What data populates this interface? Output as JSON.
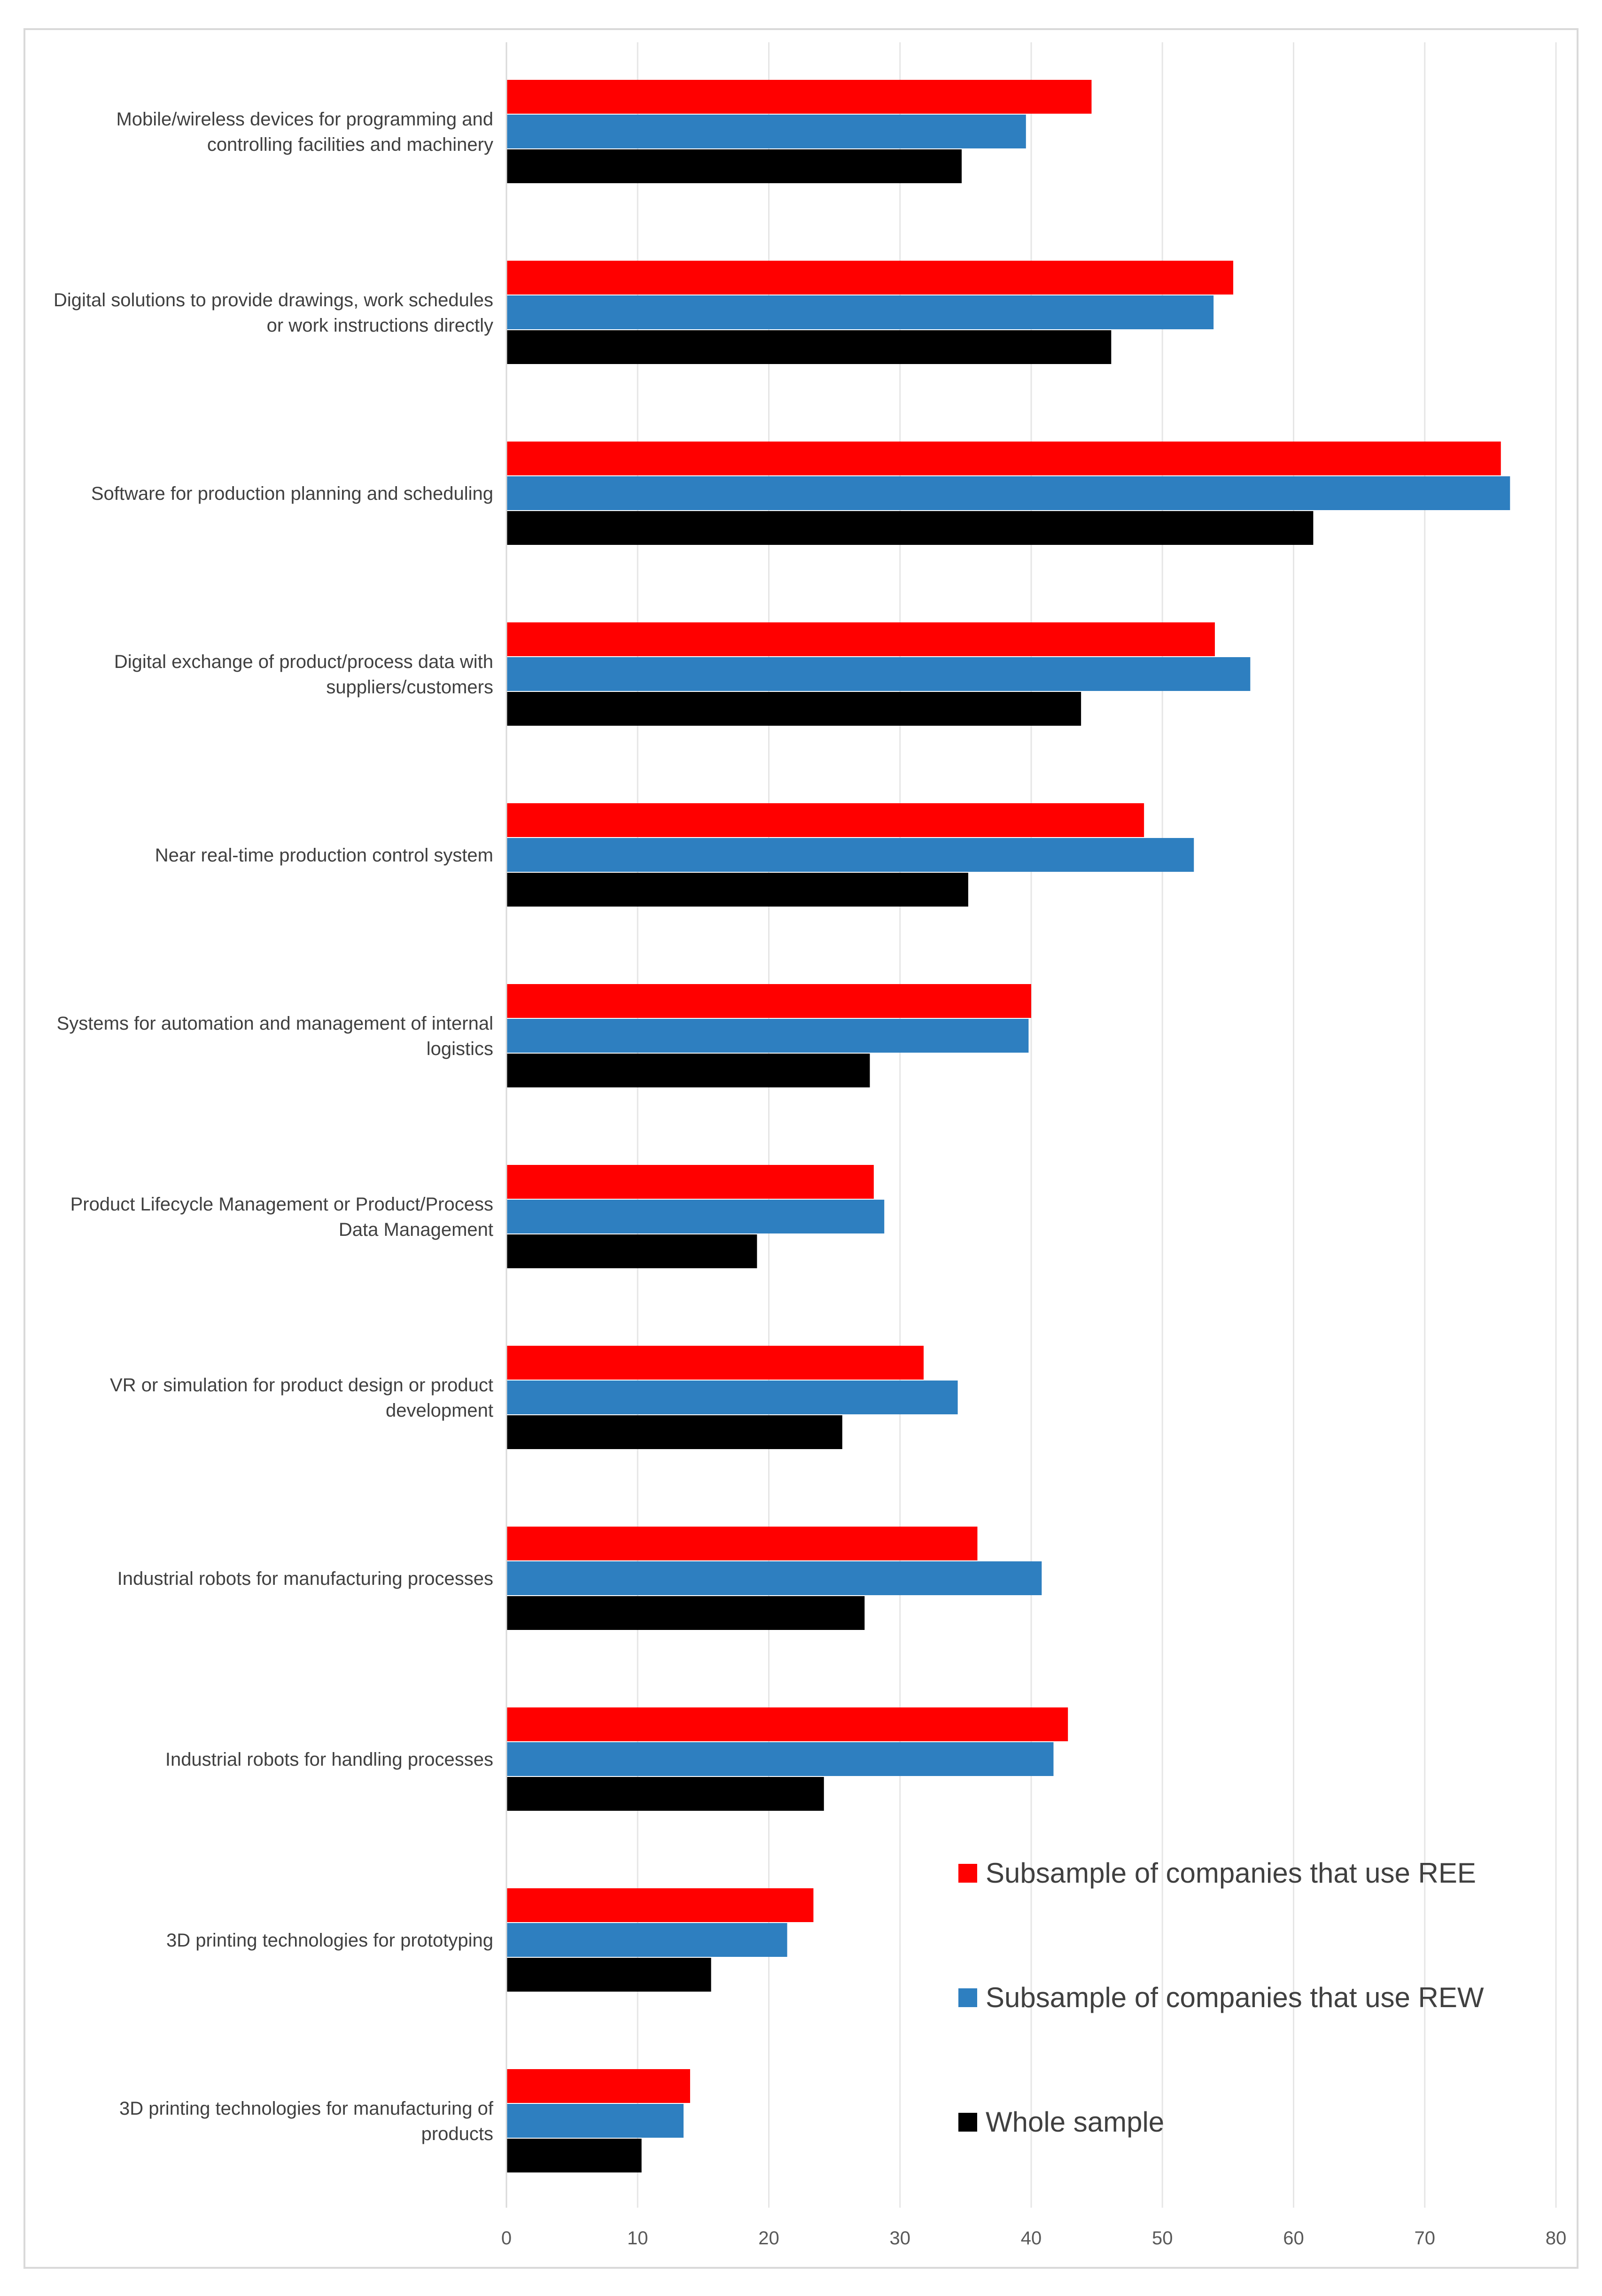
{
  "chart_data": {
    "type": "bar",
    "orientation": "horizontal",
    "title": "",
    "xlabel": "",
    "ylabel": "",
    "xlim": [
      0,
      80
    ],
    "xticks": [
      0,
      10,
      20,
      30,
      40,
      50,
      60,
      70,
      80
    ],
    "grid": "vertical",
    "legend_position": "bottom-right",
    "categories": [
      [
        "Mobile/wireless devices for programming and",
        "controlling facilities and machinery"
      ],
      [
        "Digital solutions to provide drawings, work schedules",
        "or work instructions directly"
      ],
      [
        "Software for production planning and scheduling"
      ],
      [
        "Digital exchange of product/process data with",
        "suppliers/customers"
      ],
      [
        "Near real-time production control system"
      ],
      [
        "Systems for automation and management of internal",
        "logistics"
      ],
      [
        "Product Lifecycle Management or Product/Process",
        "Data Management"
      ],
      [
        "VR or simulation for product design or product",
        "development"
      ],
      [
        "Industrial robots for manufacturing processes"
      ],
      [
        "Industrial robots for handling processes"
      ],
      [
        "3D printing technologies for prototyping"
      ],
      [
        "3D printing technologies for manufacturing of",
        "products"
      ]
    ],
    "series": [
      {
        "name": "Subsample of companies that use REE",
        "color": "#ff0000",
        "values": [
          44.6,
          55.4,
          75.8,
          54.0,
          48.6,
          40.0,
          28.0,
          31.8,
          35.9,
          42.8,
          23.4,
          14.0
        ]
      },
      {
        "name": "Subsample of companies that use REW",
        "color": "#2e7fc0",
        "values": [
          39.6,
          53.9,
          76.5,
          56.7,
          52.4,
          39.8,
          28.8,
          34.4,
          40.8,
          41.7,
          21.4,
          13.5
        ]
      },
      {
        "name": "Whole sample",
        "color": "#000000",
        "values": [
          34.7,
          46.1,
          61.5,
          43.8,
          35.2,
          27.7,
          19.1,
          25.6,
          27.3,
          24.2,
          15.6,
          10.3
        ]
      }
    ]
  }
}
